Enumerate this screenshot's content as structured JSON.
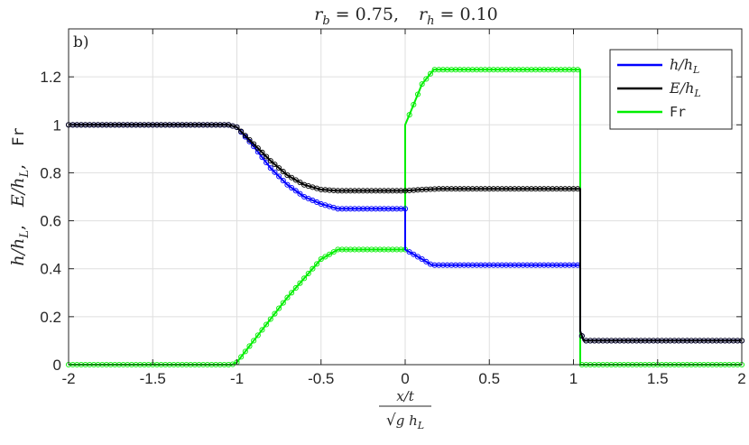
{
  "title": {
    "rb_label": "r_b = 0.75,",
    "rh_label": "r_h = 0.10"
  },
  "panel_label": "b)",
  "chart_data": {
    "type": "line",
    "xlabel": {
      "numerator": "x/t",
      "denominator": "√(g h_L)"
    },
    "ylabel": "h/h_L,   E/h_L,   Fr",
    "xlim": [
      -2,
      2
    ],
    "ylim": [
      0,
      1.4
    ],
    "xticks": [
      -2,
      -1.5,
      -1,
      -0.5,
      0,
      0.5,
      1,
      1.5,
      2
    ],
    "xtick_labels": [
      "-2",
      "-1.5",
      "-1",
      "-0.5",
      "0",
      "0.5",
      "1",
      "1.5",
      "2"
    ],
    "yticks": [
      0,
      0.2,
      0.4,
      0.6,
      0.8,
      1,
      1.2
    ],
    "ytick_labels": [
      "0",
      "0.2",
      "0.4",
      "0.6",
      "0.8",
      "1",
      "1.2"
    ],
    "grid": true,
    "legend_position": "top-right",
    "series": [
      {
        "name": "h/h_L",
        "color": "#0000ff",
        "x": [
          -2,
          -1.05,
          -1.0,
          -0.9,
          -0.8,
          -0.7,
          -0.6,
          -0.5,
          -0.4,
          0.0,
          0.0,
          0.05,
          0.1,
          0.16,
          1.04,
          1.04,
          1.06,
          2
        ],
        "y": [
          1.0,
          1.0,
          0.99,
          0.91,
          0.82,
          0.75,
          0.7,
          0.67,
          0.65,
          0.65,
          0.48,
          0.46,
          0.44,
          0.415,
          0.415,
          0.14,
          0.1,
          0.1
        ]
      },
      {
        "name": "E/h_L",
        "color": "#000000",
        "x": [
          -2,
          -1.05,
          -1.0,
          -0.9,
          -0.8,
          -0.7,
          -0.6,
          -0.5,
          -0.4,
          0.0,
          0.1,
          0.2,
          1.04,
          1.04,
          1.06,
          2
        ],
        "y": [
          1.0,
          1.0,
          0.99,
          0.92,
          0.85,
          0.79,
          0.75,
          0.73,
          0.725,
          0.725,
          0.73,
          0.733,
          0.733,
          0.14,
          0.1,
          0.1
        ]
      },
      {
        "name": "Fr",
        "color": "#00ee00",
        "x": [
          -2,
          -1.03,
          -1.0,
          -0.9,
          -0.8,
          -0.7,
          -0.6,
          -0.5,
          -0.4,
          0.0,
          0.0,
          0.03,
          0.1,
          0.17,
          1.02,
          1.04,
          1.04,
          2
        ],
        "y": [
          0,
          0,
          0.01,
          0.1,
          0.19,
          0.28,
          0.36,
          0.44,
          0.48,
          0.48,
          1.0,
          1.05,
          1.17,
          1.23,
          1.23,
          1.23,
          0,
          0
        ]
      }
    ]
  },
  "colors": {
    "axis": "#262626",
    "grid": "#dfdfdf"
  }
}
